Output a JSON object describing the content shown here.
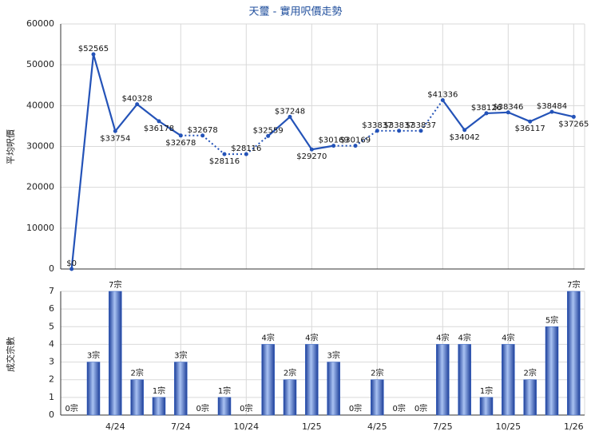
{
  "chart_data": [
    {
      "type": "line",
      "title": "天璽 - 實用呎價走勢",
      "y_label": "平均呎價",
      "color": "#2453b8",
      "values": [
        0,
        52565,
        33754,
        40328,
        36178,
        32678,
        32678,
        28116,
        28116,
        32559,
        37248,
        29270,
        30169,
        30169,
        33837,
        33837,
        33837,
        41336,
        34042,
        38126,
        38346,
        36117,
        38484,
        37265
      ],
      "value_labels": [
        "$0",
        "$52565",
        "$33754",
        "$40328",
        "$36178",
        "$32678",
        "$32678",
        "$28116",
        "$28116",
        "$32559",
        "$37248",
        "$29270",
        "$30169",
        "$30169",
        "$33837",
        "$33837",
        "$33837",
        "$41336",
        "$34042",
        "$38126",
        "$38346",
        "$36117",
        "$38484",
        "$37265"
      ],
      "ylim": [
        0,
        60000
      ],
      "yticks": [
        0,
        10000,
        20000,
        30000,
        40000,
        50000,
        60000
      ],
      "grid": true
    },
    {
      "type": "bar",
      "y_label": "成交宗數",
      "color": "#2f5fc4",
      "categories": [
        null,
        null,
        "4/24",
        null,
        null,
        "7/24",
        null,
        null,
        "10/24",
        null,
        null,
        "1/25",
        null,
        null,
        "4/25",
        null,
        null,
        "7/25",
        null,
        null,
        "10/25",
        null,
        null,
        "1/26"
      ],
      "values": [
        0,
        3,
        7,
        2,
        1,
        3,
        0,
        1,
        0,
        4,
        2,
        4,
        3,
        0,
        2,
        0,
        0,
        4,
        4,
        1,
        4,
        2,
        5,
        7
      ],
      "value_labels": [
        "0宗",
        "3宗",
        "7宗",
        "2宗",
        "1宗",
        "3宗",
        "0宗",
        "1宗",
        "0宗",
        "4宗",
        "2宗",
        "4宗",
        "3宗",
        "0宗",
        "2宗",
        "0宗",
        "0宗",
        "4宗",
        "4宗",
        "1宗",
        "4宗",
        "2宗",
        "5宗",
        "7宗"
      ],
      "ylim": [
        0,
        7
      ],
      "yticks": [
        0,
        1,
        2,
        3,
        4,
        5,
        6,
        7
      ],
      "grid": true
    }
  ]
}
